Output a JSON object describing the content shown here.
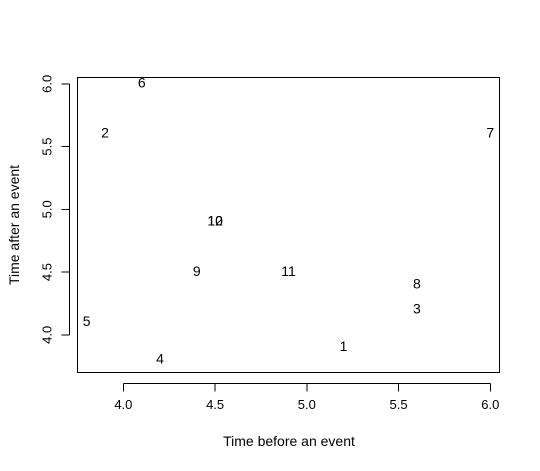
{
  "chart_data": {
    "type": "scatter",
    "xlabel": "Time before an event",
    "ylabel": "Time after an event",
    "xlim": [
      3.75,
      6.05
    ],
    "ylim": [
      3.7,
      6.05
    ],
    "x_ticks": [
      4.0,
      4.5,
      5.0,
      5.5,
      6.0
    ],
    "x_tick_labels": [
      "4.0",
      "4.5",
      "5.0",
      "5.5",
      "6.0"
    ],
    "y_ticks": [
      4.0,
      4.5,
      5.0,
      5.5,
      6.0
    ],
    "y_tick_labels": [
      "4.0",
      "4.5",
      "5.0",
      "5.5",
      "6.0"
    ],
    "grid": false,
    "points": [
      {
        "label": "1",
        "x": 5.2,
        "y": 3.9
      },
      {
        "label": "2",
        "x": 3.9,
        "y": 5.6
      },
      {
        "label": "3",
        "x": 5.6,
        "y": 4.2
      },
      {
        "label": "4",
        "x": 4.2,
        "y": 3.8
      },
      {
        "label": "5",
        "x": 3.8,
        "y": 4.1
      },
      {
        "label": "6",
        "x": 4.1,
        "y": 6.0
      },
      {
        "label": "7",
        "x": 6.0,
        "y": 5.6
      },
      {
        "label": "8",
        "x": 5.6,
        "y": 4.4
      },
      {
        "label": "9",
        "x": 4.4,
        "y": 4.5
      },
      {
        "label": "10",
        "x": 4.5,
        "y": 4.9
      },
      {
        "label": "11",
        "x": 4.9,
        "y": 4.5
      },
      {
        "label": "12",
        "x": 4.5,
        "y": 4.9
      }
    ]
  }
}
